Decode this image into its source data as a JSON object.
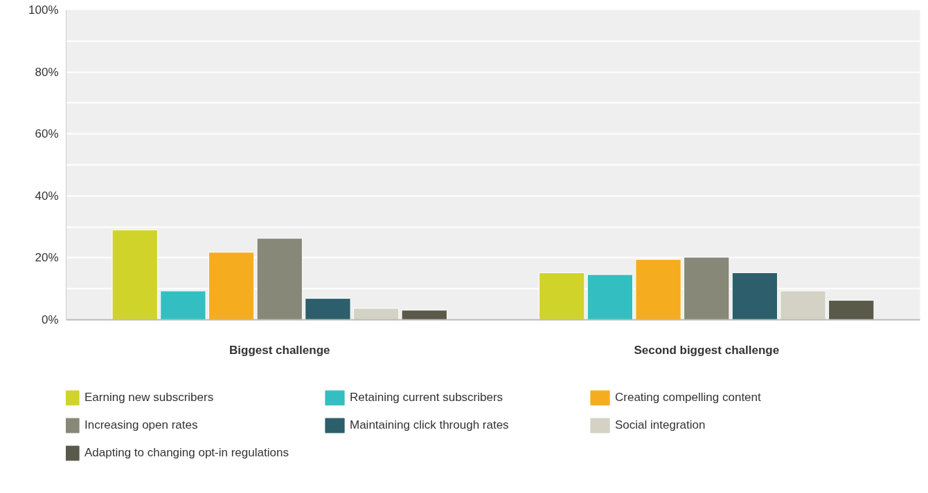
{
  "chart_data": {
    "type": "bar",
    "categories": [
      "Biggest challenge",
      "Second biggest challenge"
    ],
    "series": [
      {
        "name": "Earning new subscribers",
        "color": "#d0d42a",
        "values": [
          29,
          15.2
        ]
      },
      {
        "name": "Retaining current subscribers",
        "color": "#33bfc1",
        "values": [
          9.3,
          14.6
        ]
      },
      {
        "name": "Creating compelling content",
        "color": "#f5ad1f",
        "values": [
          21.8,
          19.5
        ]
      },
      {
        "name": "Increasing open rates",
        "color": "#888878",
        "values": [
          26.3,
          20.2
        ]
      },
      {
        "name": "Maintaining click through rates",
        "color": "#2c5f6b",
        "values": [
          6.9,
          15.2
        ]
      },
      {
        "name": "Social integration",
        "color": "#d3d2c4",
        "values": [
          3.7,
          9.3
        ]
      },
      {
        "name": "Adapting to changing opt-in regulations",
        "color": "#5a5a4a",
        "values": [
          3.1,
          6.3
        ]
      }
    ],
    "ylim": [
      0,
      100
    ],
    "yticks": [
      {
        "value": 0,
        "label": "0%"
      },
      {
        "value": 10,
        "label": null
      },
      {
        "value": 20,
        "label": "20%"
      },
      {
        "value": 30,
        "label": null
      },
      {
        "value": 40,
        "label": "40%"
      },
      {
        "value": 50,
        "label": null
      },
      {
        "value": 60,
        "label": "60%"
      },
      {
        "value": 70,
        "label": null
      },
      {
        "value": 80,
        "label": "80%"
      },
      {
        "value": 90,
        "label": null
      },
      {
        "value": 100,
        "label": "100%"
      }
    ],
    "grid": "y",
    "legend": "bottom"
  }
}
